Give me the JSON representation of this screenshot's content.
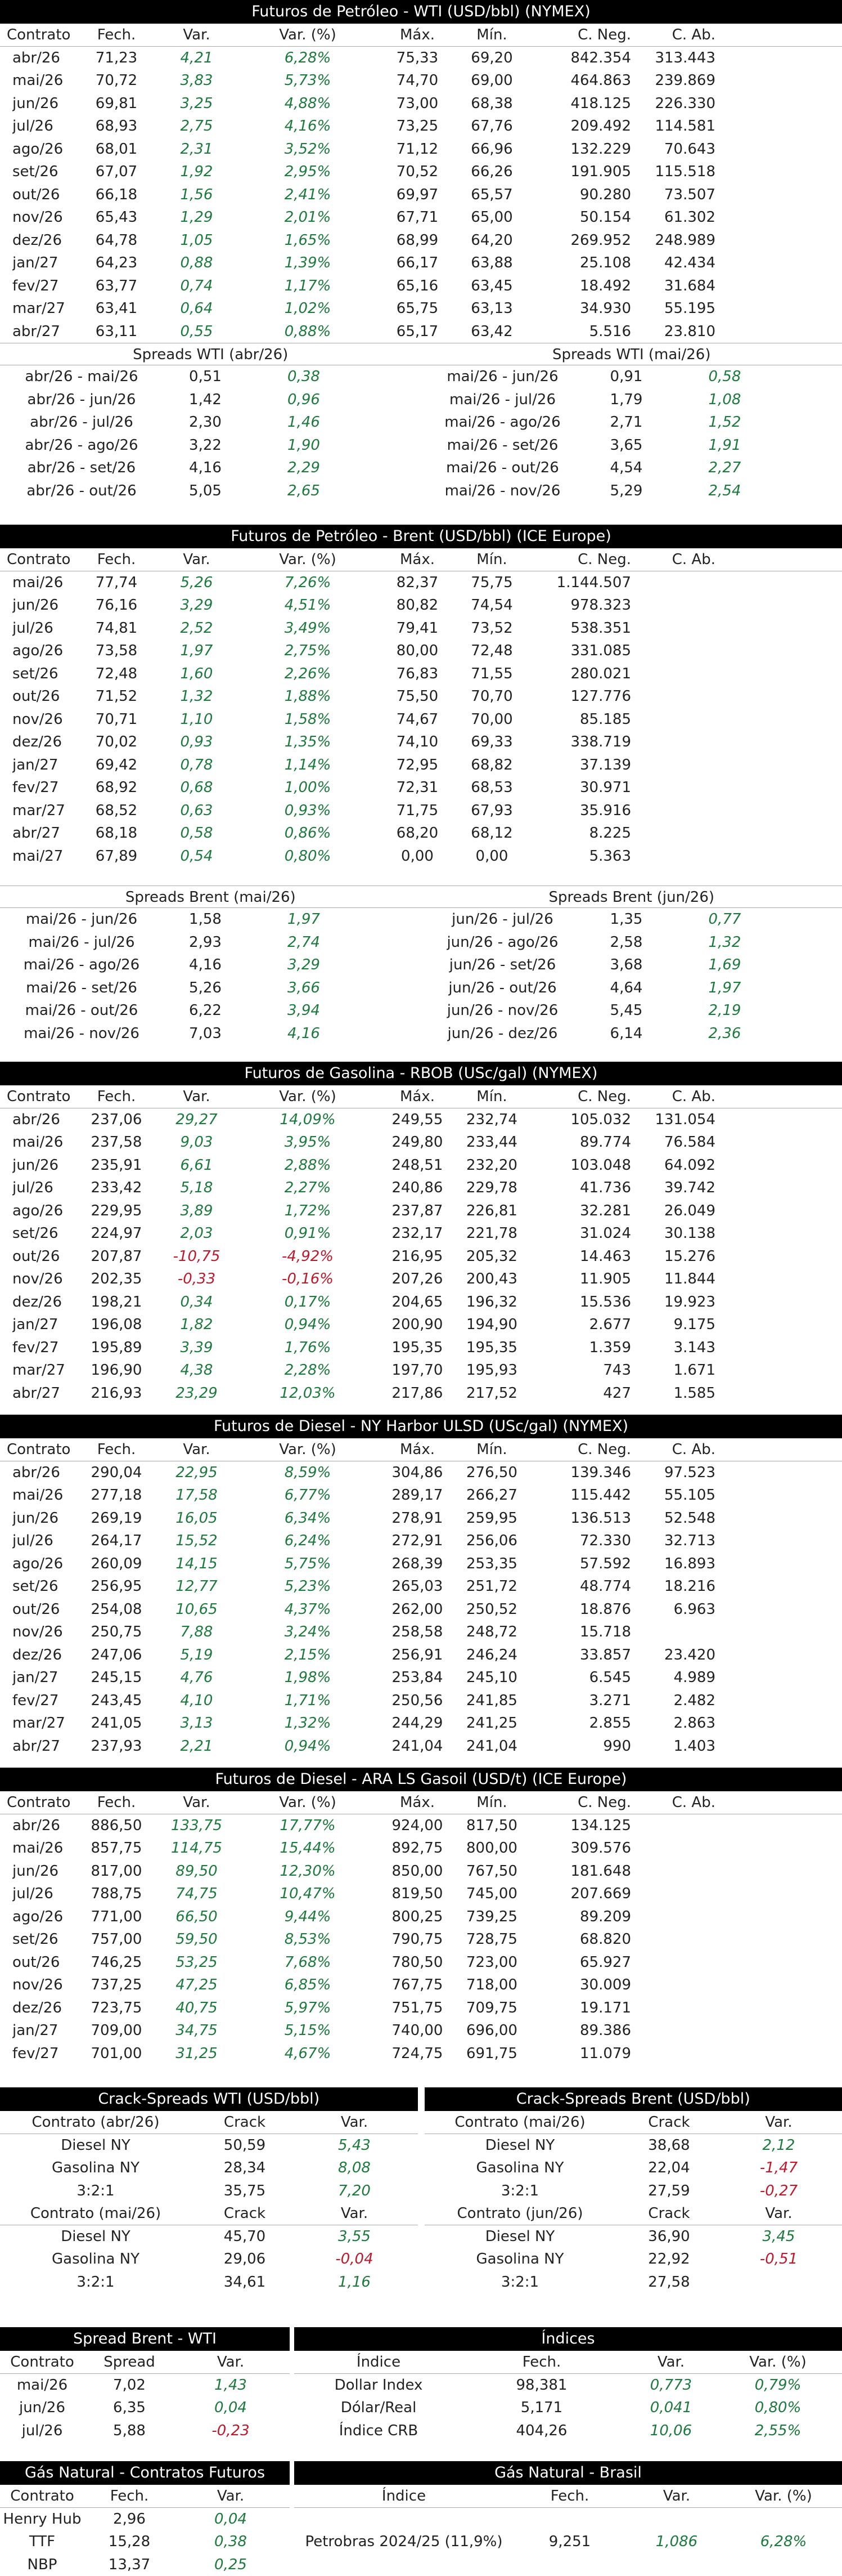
{
  "wti": {
    "title": "Futuros de Petróleo - WTI (USD/bbl) (NYMEX)",
    "cols": [
      "Contrato",
      "Fech.",
      "Var.",
      "Var. (%)",
      "Máx.",
      "Mín.",
      "C. Neg.",
      "C. Ab."
    ],
    "rows": [
      [
        "abr/26",
        "71,23",
        "4,21",
        "6,28%",
        "75,33",
        "69,20",
        "842.354",
        "313.443"
      ],
      [
        "mai/26",
        "70,72",
        "3,83",
        "5,73%",
        "74,70",
        "69,00",
        "464.863",
        "239.869"
      ],
      [
        "jun/26",
        "69,81",
        "3,25",
        "4,88%",
        "73,00",
        "68,38",
        "418.125",
        "226.330"
      ],
      [
        "jul/26",
        "68,93",
        "2,75",
        "4,16%",
        "73,25",
        "67,76",
        "209.492",
        "114.581"
      ],
      [
        "ago/26",
        "68,01",
        "2,31",
        "3,52%",
        "71,12",
        "66,96",
        "132.229",
        "70.643"
      ],
      [
        "set/26",
        "67,07",
        "1,92",
        "2,95%",
        "70,52",
        "66,26",
        "191.905",
        "115.518"
      ],
      [
        "out/26",
        "66,18",
        "1,56",
        "2,41%",
        "69,97",
        "65,57",
        "90.280",
        "73.507"
      ],
      [
        "nov/26",
        "65,43",
        "1,29",
        "2,01%",
        "67,71",
        "65,00",
        "50.154",
        "61.302"
      ],
      [
        "dez/26",
        "64,78",
        "1,05",
        "1,65%",
        "68,99",
        "64,20",
        "269.952",
        "248.989"
      ],
      [
        "jan/27",
        "64,23",
        "0,88",
        "1,39%",
        "66,17",
        "63,88",
        "25.108",
        "42.434"
      ],
      [
        "fev/27",
        "63,77",
        "0,74",
        "1,17%",
        "65,16",
        "63,45",
        "18.492",
        "31.684"
      ],
      [
        "mar/27",
        "63,41",
        "0,64",
        "1,02%",
        "65,75",
        "63,13",
        "34.930",
        "55.195"
      ],
      [
        "abr/27",
        "63,11",
        "0,55",
        "0,88%",
        "65,17",
        "63,42",
        "5.516",
        "23.810"
      ]
    ]
  },
  "wti_spreads": {
    "left_title": "Spreads WTI (abr/26)",
    "right_title": "Spreads WTI (mai/26)",
    "left": [
      [
        "abr/26 - mai/26",
        "0,51",
        "0,38"
      ],
      [
        "abr/26 - jun/26",
        "1,42",
        "0,96"
      ],
      [
        "abr/26 - jul/26",
        "2,30",
        "1,46"
      ],
      [
        "abr/26 - ago/26",
        "3,22",
        "1,90"
      ],
      [
        "abr/26 - set/26",
        "4,16",
        "2,29"
      ],
      [
        "abr/26 - out/26",
        "5,05",
        "2,65"
      ]
    ],
    "right": [
      [
        "mai/26 - jun/26",
        "0,91",
        "0,58"
      ],
      [
        "mai/26 - jul/26",
        "1,79",
        "1,08"
      ],
      [
        "mai/26 - ago/26",
        "2,71",
        "1,52"
      ],
      [
        "mai/26 - set/26",
        "3,65",
        "1,91"
      ],
      [
        "mai/26 - out/26",
        "4,54",
        "2,27"
      ],
      [
        "mai/26 - nov/26",
        "5,29",
        "2,54"
      ]
    ]
  },
  "brent": {
    "title": "Futuros de Petróleo - Brent (USD/bbl) (ICE Europe)",
    "cols": [
      "Contrato",
      "Fech.",
      "Var.",
      "Var. (%)",
      "Máx.",
      "Mín.",
      "C. Neg.",
      "C. Ab."
    ],
    "rows": [
      [
        "mai/26",
        "77,74",
        "5,26",
        "7,26%",
        "82,37",
        "75,75",
        "1.144.507",
        ""
      ],
      [
        "jun/26",
        "76,16",
        "3,29",
        "4,51%",
        "80,82",
        "74,54",
        "978.323",
        ""
      ],
      [
        "jul/26",
        "74,81",
        "2,52",
        "3,49%",
        "79,41",
        "73,52",
        "538.351",
        ""
      ],
      [
        "ago/26",
        "73,58",
        "1,97",
        "2,75%",
        "80,00",
        "72,48",
        "331.085",
        ""
      ],
      [
        "set/26",
        "72,48",
        "1,60",
        "2,26%",
        "76,83",
        "71,55",
        "280.021",
        ""
      ],
      [
        "out/26",
        "71,52",
        "1,32",
        "1,88%",
        "75,50",
        "70,70",
        "127.776",
        ""
      ],
      [
        "nov/26",
        "70,71",
        "1,10",
        "1,58%",
        "74,67",
        "70,00",
        "85.185",
        ""
      ],
      [
        "dez/26",
        "70,02",
        "0,93",
        "1,35%",
        "74,10",
        "69,33",
        "338.719",
        ""
      ],
      [
        "jan/27",
        "69,42",
        "0,78",
        "1,14%",
        "72,95",
        "68,82",
        "37.139",
        ""
      ],
      [
        "fev/27",
        "68,92",
        "0,68",
        "1,00%",
        "72,31",
        "68,53",
        "30.971",
        ""
      ],
      [
        "mar/27",
        "68,52",
        "0,63",
        "0,93%",
        "71,75",
        "67,93",
        "35.916",
        ""
      ],
      [
        "abr/27",
        "68,18",
        "0,58",
        "0,86%",
        "68,20",
        "68,12",
        "8.225",
        ""
      ],
      [
        "mai/27",
        "67,89",
        "0,54",
        "0,80%",
        "0,00",
        "0,00",
        "5.363",
        ""
      ]
    ]
  },
  "brent_spreads": {
    "left_title": "Spreads Brent (mai/26)",
    "right_title": "Spreads Brent (jun/26)",
    "left": [
      [
        "mai/26 - jun/26",
        "1,58",
        "1,97"
      ],
      [
        "mai/26 - jul/26",
        "2,93",
        "2,74"
      ],
      [
        "mai/26 - ago/26",
        "4,16",
        "3,29"
      ],
      [
        "mai/26 - set/26",
        "5,26",
        "3,66"
      ],
      [
        "mai/26 - out/26",
        "6,22",
        "3,94"
      ],
      [
        "mai/26 - nov/26",
        "7,03",
        "4,16"
      ]
    ],
    "right": [
      [
        "jun/26 - jul/26",
        "1,35",
        "0,77"
      ],
      [
        "jun/26 - ago/26",
        "2,58",
        "1,32"
      ],
      [
        "jun/26 - set/26",
        "3,68",
        "1,69"
      ],
      [
        "jun/26 - out/26",
        "4,64",
        "1,97"
      ],
      [
        "jun/26 - nov/26",
        "5,45",
        "2,19"
      ],
      [
        "jun/26 - dez/26",
        "6,14",
        "2,36"
      ]
    ]
  },
  "rbob": {
    "title": "Futuros de Gasolina - RBOB (USc/gal) (NYMEX)",
    "cols": [
      "Contrato",
      "Fech.",
      "Var.",
      "Var. (%)",
      "Máx.",
      "Mín.",
      "C. Neg.",
      "C. Ab."
    ],
    "rows": [
      [
        "abr/26",
        "237,06",
        "29,27",
        "14,09%",
        "249,55",
        "232,74",
        "105.032",
        "131.054"
      ],
      [
        "mai/26",
        "237,58",
        "9,03",
        "3,95%",
        "249,80",
        "233,44",
        "89.774",
        "76.584"
      ],
      [
        "jun/26",
        "235,91",
        "6,61",
        "2,88%",
        "248,51",
        "232,20",
        "103.048",
        "64.092"
      ],
      [
        "jul/26",
        "233,42",
        "5,18",
        "2,27%",
        "240,86",
        "229,78",
        "41.736",
        "39.742"
      ],
      [
        "ago/26",
        "229,95",
        "3,89",
        "1,72%",
        "237,87",
        "226,81",
        "32.281",
        "26.049"
      ],
      [
        "set/26",
        "224,97",
        "2,03",
        "0,91%",
        "232,17",
        "221,78",
        "31.024",
        "30.138"
      ],
      [
        "out/26",
        "207,87",
        "-10,75",
        "-4,92%",
        "216,95",
        "205,32",
        "14.463",
        "15.276"
      ],
      [
        "nov/26",
        "202,35",
        "-0,33",
        "-0,16%",
        "207,26",
        "200,43",
        "11.905",
        "11.844"
      ],
      [
        "dez/26",
        "198,21",
        "0,34",
        "0,17%",
        "204,65",
        "196,32",
        "15.536",
        "19.923"
      ],
      [
        "jan/27",
        "196,08",
        "1,82",
        "0,94%",
        "200,90",
        "194,90",
        "2.677",
        "9.175"
      ],
      [
        "fev/27",
        "195,89",
        "3,39",
        "1,76%",
        "195,35",
        "195,35",
        "1.359",
        "3.143"
      ],
      [
        "mar/27",
        "196,90",
        "4,38",
        "2,28%",
        "197,70",
        "195,93",
        "743",
        "1.671"
      ],
      [
        "abr/27",
        "216,93",
        "23,29",
        "12,03%",
        "217,86",
        "217,52",
        "427",
        "1.585"
      ]
    ]
  },
  "ulsd": {
    "title": "Futuros de Diesel - NY Harbor ULSD (USc/gal) (NYMEX)",
    "cols": [
      "Contrato",
      "Fech.",
      "Var.",
      "Var. (%)",
      "Máx.",
      "Mín.",
      "C. Neg.",
      "C. Ab."
    ],
    "rows": [
      [
        "abr/26",
        "290,04",
        "22,95",
        "8,59%",
        "304,86",
        "276,50",
        "139.346",
        "97.523"
      ],
      [
        "mai/26",
        "277,18",
        "17,58",
        "6,77%",
        "289,17",
        "266,27",
        "115.442",
        "55.105"
      ],
      [
        "jun/26",
        "269,19",
        "16,05",
        "6,34%",
        "278,91",
        "259,95",
        "136.513",
        "52.548"
      ],
      [
        "jul/26",
        "264,17",
        "15,52",
        "6,24%",
        "272,91",
        "256,06",
        "72.330",
        "32.713"
      ],
      [
        "ago/26",
        "260,09",
        "14,15",
        "5,75%",
        "268,39",
        "253,35",
        "57.592",
        "16.893"
      ],
      [
        "set/26",
        "256,95",
        "12,77",
        "5,23%",
        "265,03",
        "251,72",
        "48.774",
        "18.216"
      ],
      [
        "out/26",
        "254,08",
        "10,65",
        "4,37%",
        "262,00",
        "250,52",
        "18.876",
        "6.963"
      ],
      [
        "nov/26",
        "250,75",
        "7,88",
        "3,24%",
        "258,58",
        "248,72",
        "15.718",
        ""
      ],
      [
        "dez/26",
        "247,06",
        "5,19",
        "2,15%",
        "256,91",
        "246,24",
        "33.857",
        "23.420"
      ],
      [
        "jan/27",
        "245,15",
        "4,76",
        "1,98%",
        "253,84",
        "245,10",
        "6.545",
        "4.989"
      ],
      [
        "fev/27",
        "243,45",
        "4,10",
        "1,71%",
        "250,56",
        "241,85",
        "3.271",
        "2.482"
      ],
      [
        "mar/27",
        "241,05",
        "3,13",
        "1,32%",
        "244,29",
        "241,25",
        "2.855",
        "2.863"
      ],
      [
        "abr/27",
        "237,93",
        "2,21",
        "0,94%",
        "241,04",
        "241,04",
        "990",
        "1.403"
      ]
    ]
  },
  "gasoil": {
    "title": "Futuros de Diesel - ARA LS Gasoil (USD/t) (ICE Europe)",
    "cols": [
      "Contrato",
      "Fech.",
      "Var.",
      "Var. (%)",
      "Máx.",
      "Mín.",
      "C. Neg.",
      "C. Ab."
    ],
    "rows": [
      [
        "abr/26",
        "886,50",
        "133,75",
        "17,77%",
        "924,00",
        "817,50",
        "134.125",
        ""
      ],
      [
        "mai/26",
        "857,75",
        "114,75",
        "15,44%",
        "892,75",
        "800,00",
        "309.576",
        ""
      ],
      [
        "jun/26",
        "817,00",
        "89,50",
        "12,30%",
        "850,00",
        "767,50",
        "181.648",
        ""
      ],
      [
        "jul/26",
        "788,75",
        "74,75",
        "10,47%",
        "819,50",
        "745,00",
        "207.669",
        ""
      ],
      [
        "ago/26",
        "771,00",
        "66,50",
        "9,44%",
        "800,25",
        "739,25",
        "89.209",
        ""
      ],
      [
        "set/26",
        "757,00",
        "59,50",
        "8,53%",
        "790,75",
        "728,75",
        "68.820",
        ""
      ],
      [
        "out/26",
        "746,25",
        "53,25",
        "7,68%",
        "780,50",
        "723,00",
        "65.927",
        ""
      ],
      [
        "nov/26",
        "737,25",
        "47,25",
        "6,85%",
        "767,75",
        "718,00",
        "30.009",
        ""
      ],
      [
        "dez/26",
        "723,75",
        "40,75",
        "5,97%",
        "751,75",
        "709,75",
        "19.171",
        ""
      ],
      [
        "jan/27",
        "709,00",
        "34,75",
        "5,15%",
        "740,00",
        "696,00",
        "89.386",
        ""
      ],
      [
        "fev/27",
        "701,00",
        "31,25",
        "4,67%",
        "724,75",
        "691,75",
        "11.079",
        ""
      ]
    ]
  },
  "crack_wti": {
    "title": "Crack-Spreads WTI (USD/bbl)",
    "blocks": [
      {
        "cols": [
          "Contrato (abr/26)",
          "Crack",
          "Var."
        ],
        "rows": [
          [
            "Diesel NY",
            "50,59",
            "5,43"
          ],
          [
            "Gasolina NY",
            "28,34",
            "8,08"
          ],
          [
            "3:2:1",
            "35,75",
            "7,20"
          ]
        ]
      },
      {
        "cols": [
          "Contrato (mai/26)",
          "Crack",
          "Var."
        ],
        "rows": [
          [
            "Diesel NY",
            "45,70",
            "3,55"
          ],
          [
            "Gasolina NY",
            "29,06",
            "-0,04"
          ],
          [
            "3:2:1",
            "34,61",
            "1,16"
          ]
        ]
      }
    ]
  },
  "crack_brent": {
    "title": "Crack-Spreads Brent (USD/bbl)",
    "blocks": [
      {
        "cols": [
          "Contrato (mai/26)",
          "Crack",
          "Var."
        ],
        "rows": [
          [
            "Diesel NY",
            "38,68",
            "2,12"
          ],
          [
            "Gasolina NY",
            "22,04",
            "-1,47"
          ],
          [
            "3:2:1",
            "27,59",
            "-0,27"
          ]
        ]
      },
      {
        "cols": [
          "Contrato (jun/26)",
          "Crack",
          "Var."
        ],
        "rows": [
          [
            "Diesel NY",
            "36,90",
            "3,45"
          ],
          [
            "Gasolina NY",
            "22,92",
            "-0,51"
          ],
          [
            "3:2:1",
            "27,58",
            ""
          ]
        ]
      }
    ]
  },
  "spread_bw": {
    "title": "Spread Brent - WTI",
    "cols": [
      "Contrato",
      "Spread",
      "Var."
    ],
    "rows": [
      [
        "mai/26",
        "7,02",
        "1,43"
      ],
      [
        "jun/26",
        "6,35",
        "0,04"
      ],
      [
        "jul/26",
        "5,88",
        "-0,23"
      ]
    ]
  },
  "indices": {
    "title": "Índices",
    "cols": [
      "Índice",
      "Fech.",
      "Var.",
      "Var. (%)"
    ],
    "rows": [
      [
        "Dollar Index",
        "98,381",
        "0,773",
        "0,79%"
      ],
      [
        "Dólar/Real",
        "5,171",
        "0,041",
        "0,80%"
      ],
      [
        "Índice CRB",
        "404,26",
        "10,06",
        "2,55%"
      ]
    ]
  },
  "gas_fut": {
    "title": "Gás Natural - Contratos Futuros",
    "cols": [
      "Contrato",
      "Fech.",
      "Var."
    ],
    "rows": [
      [
        "Henry Hub",
        "2,96",
        "0,04"
      ],
      [
        "TTF",
        "15,28",
        "0,38"
      ],
      [
        "NBP",
        "13,37",
        "0,25"
      ]
    ]
  },
  "gas_br": {
    "title": "Gás Natural - Brasil",
    "cols": [
      "Índice",
      "Fech.",
      "Var.",
      "Var. (%)"
    ],
    "rows": [
      [
        "",
        "",
        "",
        ""
      ],
      [
        "Petrobras 2024/25 (11,9%)",
        "9,251",
        "1,086",
        "6,28%"
      ],
      [
        "",
        "",
        "",
        ""
      ]
    ]
  }
}
